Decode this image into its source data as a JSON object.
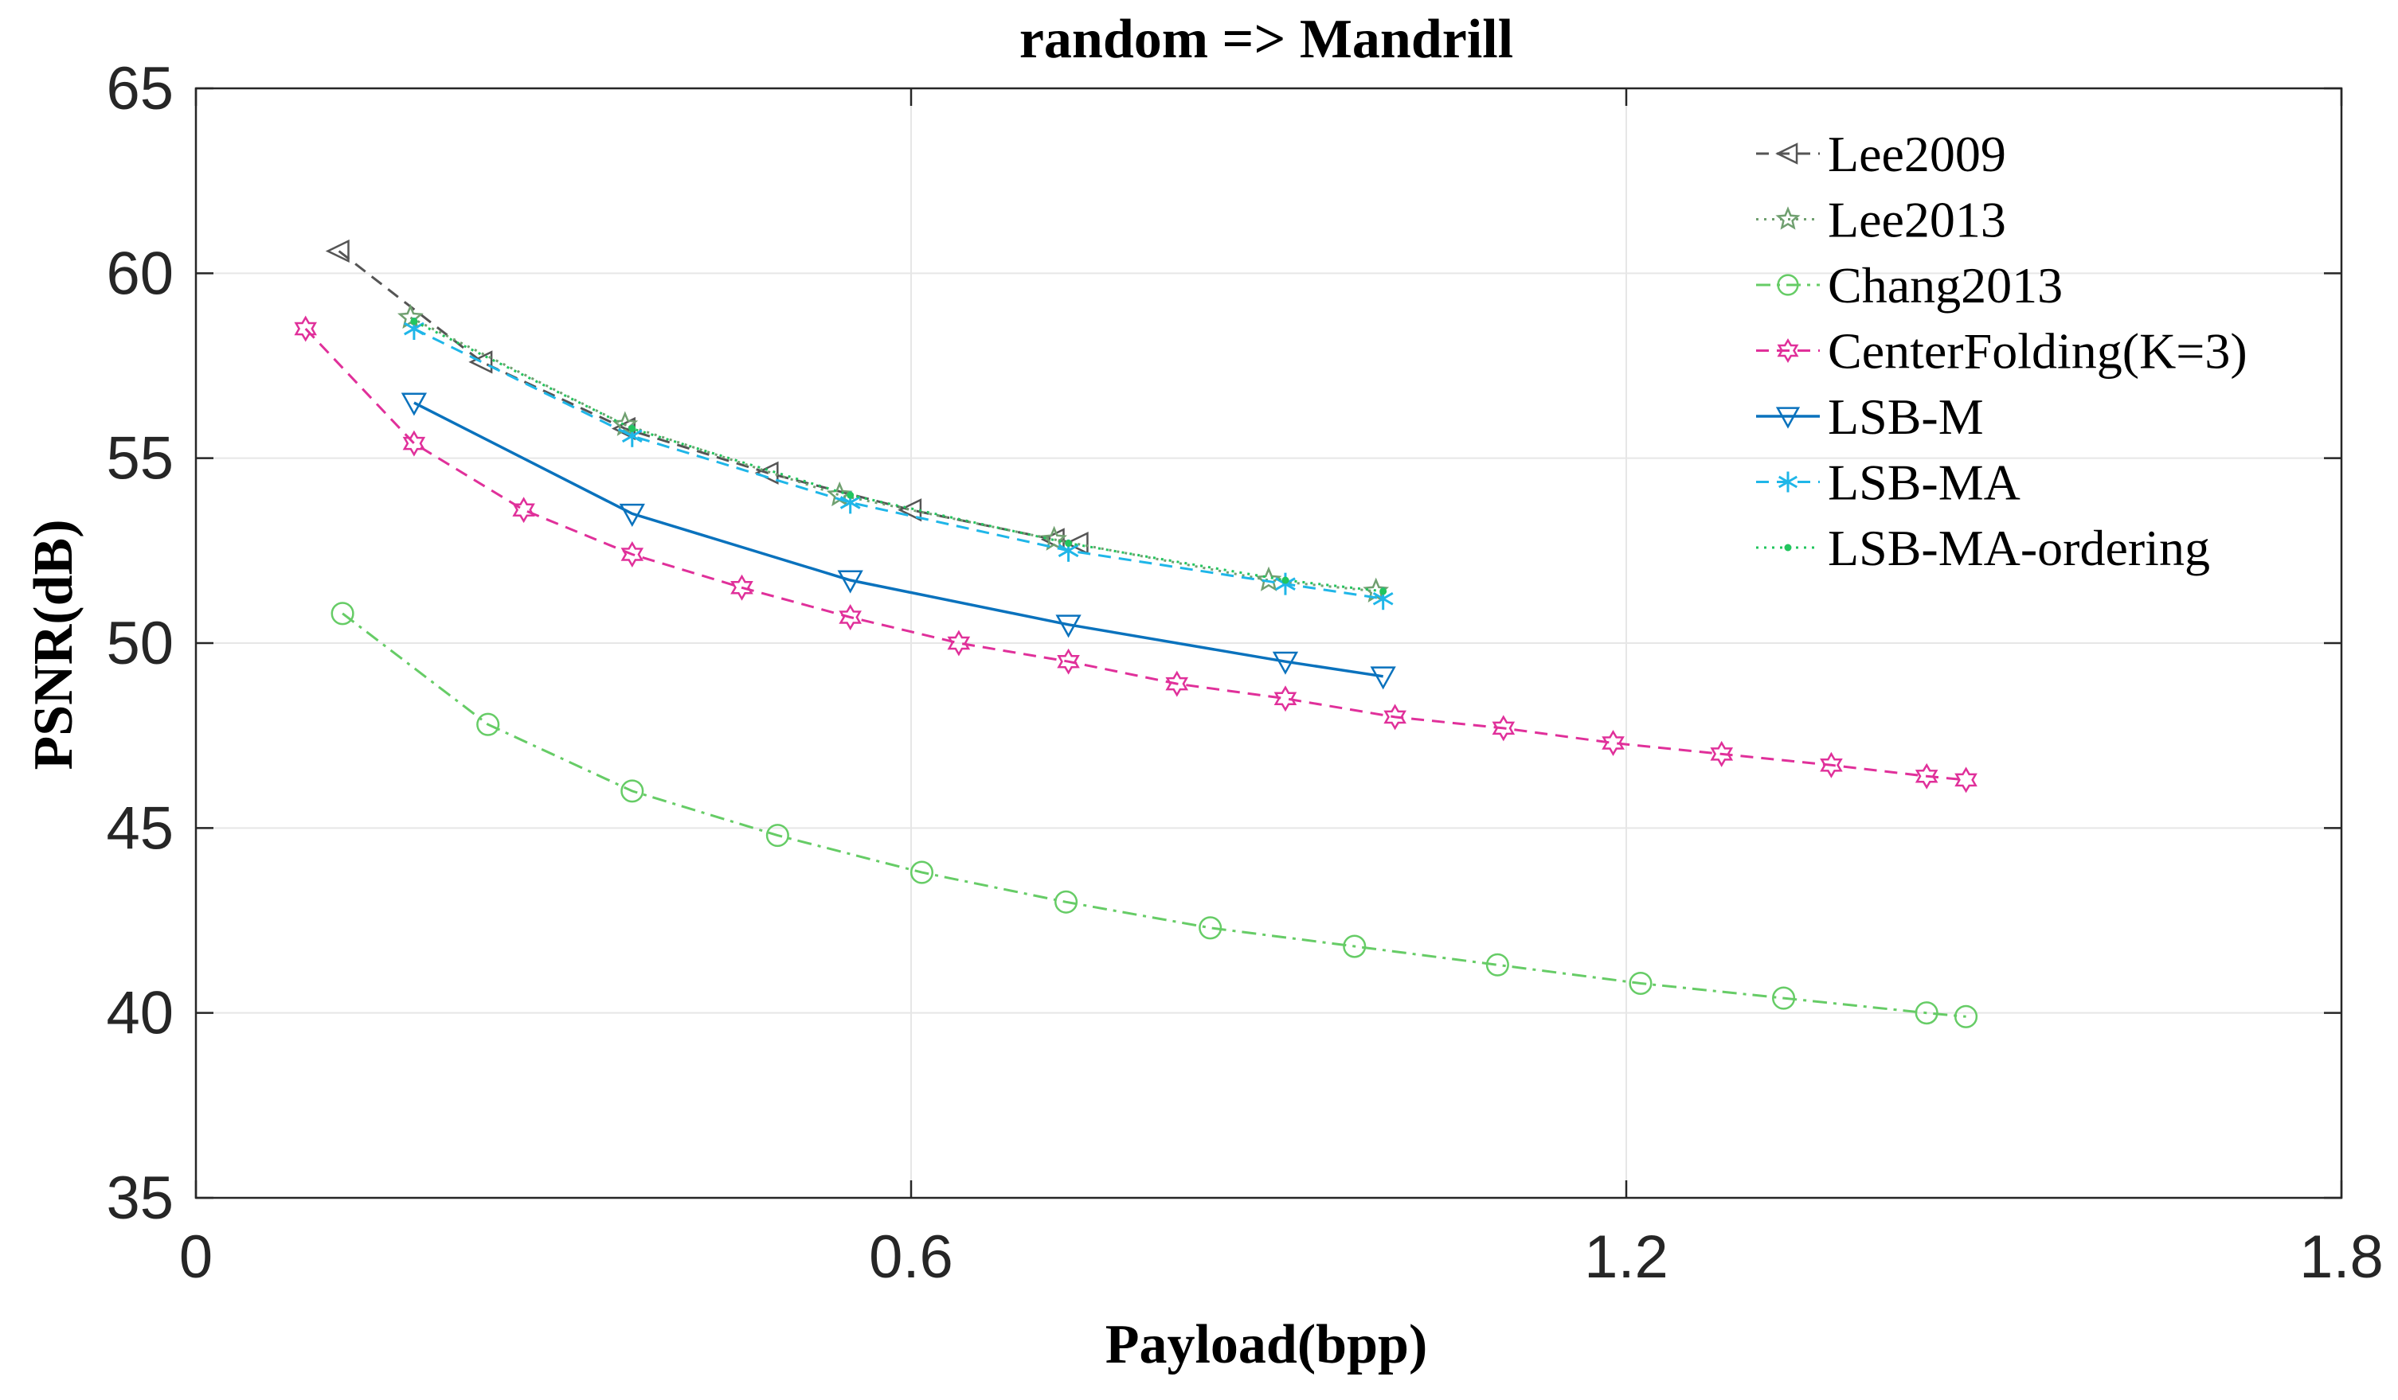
{
  "chart_data": {
    "type": "line",
    "title": "random => Mandrill",
    "xlabel": "Payload(bpp)",
    "ylabel": "PSNR(dB)",
    "xlim": [
      0,
      1.8
    ],
    "ylim": [
      35,
      65
    ],
    "xticks": [
      0,
      0.6,
      1.2,
      1.8
    ],
    "xtick_labels": [
      "0",
      "0.6",
      "1.2",
      "1.8"
    ],
    "yticks": [
      35,
      40,
      45,
      50,
      55,
      60,
      65
    ],
    "ytick_labels": [
      "35",
      "40",
      "45",
      "50",
      "55",
      "60",
      "65"
    ],
    "grid": true,
    "legend_position": "top-right",
    "series": [
      {
        "name": "Lee2009",
        "color": "#555555",
        "line": "dashed",
        "marker": "triangle-left",
        "x": [
          0.12,
          0.24,
          0.36,
          0.48,
          0.6,
          0.72,
          0.74
        ],
        "y": [
          60.6,
          57.6,
          55.8,
          54.6,
          53.6,
          52.8,
          52.7
        ]
      },
      {
        "name": "Lee2013",
        "color": "#70a070",
        "line": "dotted",
        "marker": "star",
        "x": [
          0.18,
          0.36,
          0.54,
          0.72,
          0.9,
          0.99
        ],
        "y": [
          58.8,
          55.9,
          54.0,
          52.8,
          51.7,
          51.4
        ]
      },
      {
        "name": "Chang2013",
        "color": "#66cc66",
        "line": "dashdot",
        "marker": "circle",
        "x": [
          0.123,
          0.245,
          0.366,
          0.488,
          0.609,
          0.73,
          0.851,
          0.972,
          1.092,
          1.212,
          1.332,
          1.452,
          1.485
        ],
        "y": [
          50.8,
          47.8,
          46.0,
          44.8,
          43.8,
          43.0,
          42.3,
          41.8,
          41.3,
          40.8,
          40.4,
          40.0,
          39.9
        ]
      },
      {
        "name": "CenterFolding(K=3)",
        "color": "#e0309a",
        "line": "dashed",
        "marker": "hexagram",
        "x": [
          0.092,
          0.183,
          0.275,
          0.366,
          0.458,
          0.549,
          0.64,
          0.732,
          0.823,
          0.914,
          1.006,
          1.097,
          1.189,
          1.28,
          1.372,
          1.452,
          1.485
        ],
        "y": [
          58.5,
          55.4,
          53.6,
          52.4,
          51.5,
          50.7,
          50.0,
          49.5,
          48.9,
          48.5,
          48.0,
          47.7,
          47.3,
          47.0,
          46.7,
          46.4,
          46.3
        ]
      },
      {
        "name": "LSB-M",
        "color": "#0a72bd",
        "line": "solid",
        "marker": "triangle-down",
        "x": [
          0.183,
          0.366,
          0.549,
          0.732,
          0.914,
          0.996
        ],
        "y": [
          56.5,
          53.5,
          51.7,
          50.5,
          49.5,
          49.1
        ]
      },
      {
        "name": "LSB-MA",
        "color": "#1fb6e8",
        "line": "dashed",
        "marker": "asterisk",
        "x": [
          0.183,
          0.366,
          0.549,
          0.732,
          0.914,
          0.996
        ],
        "y": [
          58.5,
          55.6,
          53.8,
          52.5,
          51.6,
          51.2
        ]
      },
      {
        "name": "LSB-MA-ordering",
        "color": "#22c55e",
        "line": "dotted",
        "marker": "point",
        "x": [
          0.183,
          0.366,
          0.549,
          0.732,
          0.914,
          0.996
        ],
        "y": [
          58.7,
          55.8,
          54.0,
          52.7,
          51.7,
          51.4
        ]
      }
    ]
  }
}
